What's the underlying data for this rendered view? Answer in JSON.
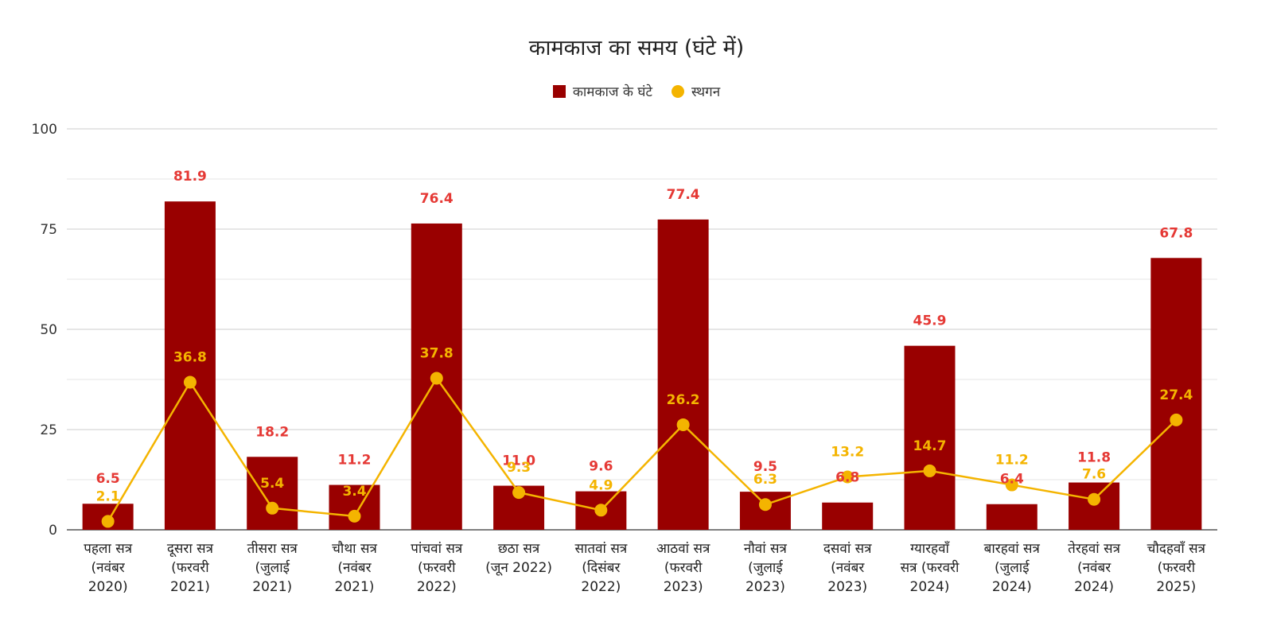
{
  "chart_data": {
    "type": "bar",
    "title": "कामकाज का समय (घंटे में)",
    "xlabel": "",
    "ylabel": "",
    "ylim": [
      0,
      100
    ],
    "yticks": [
      0,
      25,
      50,
      75,
      100
    ],
    "grid": true,
    "legend_position": "top",
    "categories": [
      [
        "पहला सत्र",
        "(नवंबर",
        "2020)"
      ],
      [
        "दूसरा सत्र",
        "(फरवरी",
        "2021)"
      ],
      [
        "तीसरा सत्र",
        "(जुलाई",
        "2021)"
      ],
      [
        "चौथा सत्र",
        "(नवंबर",
        "2021)"
      ],
      [
        "पांचवां सत्र",
        "(फरवरी",
        "2022)"
      ],
      [
        "छठा सत्र",
        "(जून 2022)"
      ],
      [
        "सातवां सत्र",
        "(दिसंबर",
        "2022)"
      ],
      [
        "आठवां सत्र",
        "(फरवरी",
        "2023)"
      ],
      [
        "नौवां सत्र",
        "(जुलाई",
        "2023)"
      ],
      [
        "दसवां सत्र",
        "(नवंबर",
        "2023)"
      ],
      [
        "ग्यारहवाँ",
        "सत्र (फरवरी",
        "2024)"
      ],
      [
        "बारहवां सत्र",
        "(जुलाई",
        "2024)"
      ],
      [
        "तेरहवां सत्र",
        "(नवंबर",
        "2024)"
      ],
      [
        "चौदहवाँ सत्र",
        "(फरवरी",
        "2025)"
      ]
    ],
    "series": [
      {
        "name": "कामकाज के घंटे",
        "type": "bar",
        "color": "#990000",
        "label_color": "#e53935",
        "values": [
          6.5,
          81.9,
          18.2,
          11.2,
          76.4,
          11.0,
          9.6,
          77.4,
          9.5,
          6.8,
          45.9,
          6.4,
          11.8,
          67.8
        ],
        "labels": [
          "6.5",
          "81.9",
          "18.2",
          "11.2",
          "76.4",
          "11.0",
          "9.6",
          "77.4",
          "9.5",
          "6.8",
          "45.9",
          "6.4",
          "11.8",
          "67.8"
        ]
      },
      {
        "name": "स्थगन",
        "type": "line",
        "color": "#f4b400",
        "label_color": "#f4b400",
        "values": [
          2.1,
          36.8,
          5.4,
          3.4,
          37.8,
          9.3,
          4.9,
          26.2,
          6.3,
          13.2,
          14.7,
          11.2,
          7.6,
          27.4
        ],
        "labels": [
          "2.1",
          "36.8",
          "5.4",
          "3.4",
          "37.8",
          "9.3",
          "4.9",
          "26.2",
          "6.3",
          "13.2",
          "14.7",
          "11.2",
          "7.6",
          "27.4"
        ]
      }
    ]
  }
}
